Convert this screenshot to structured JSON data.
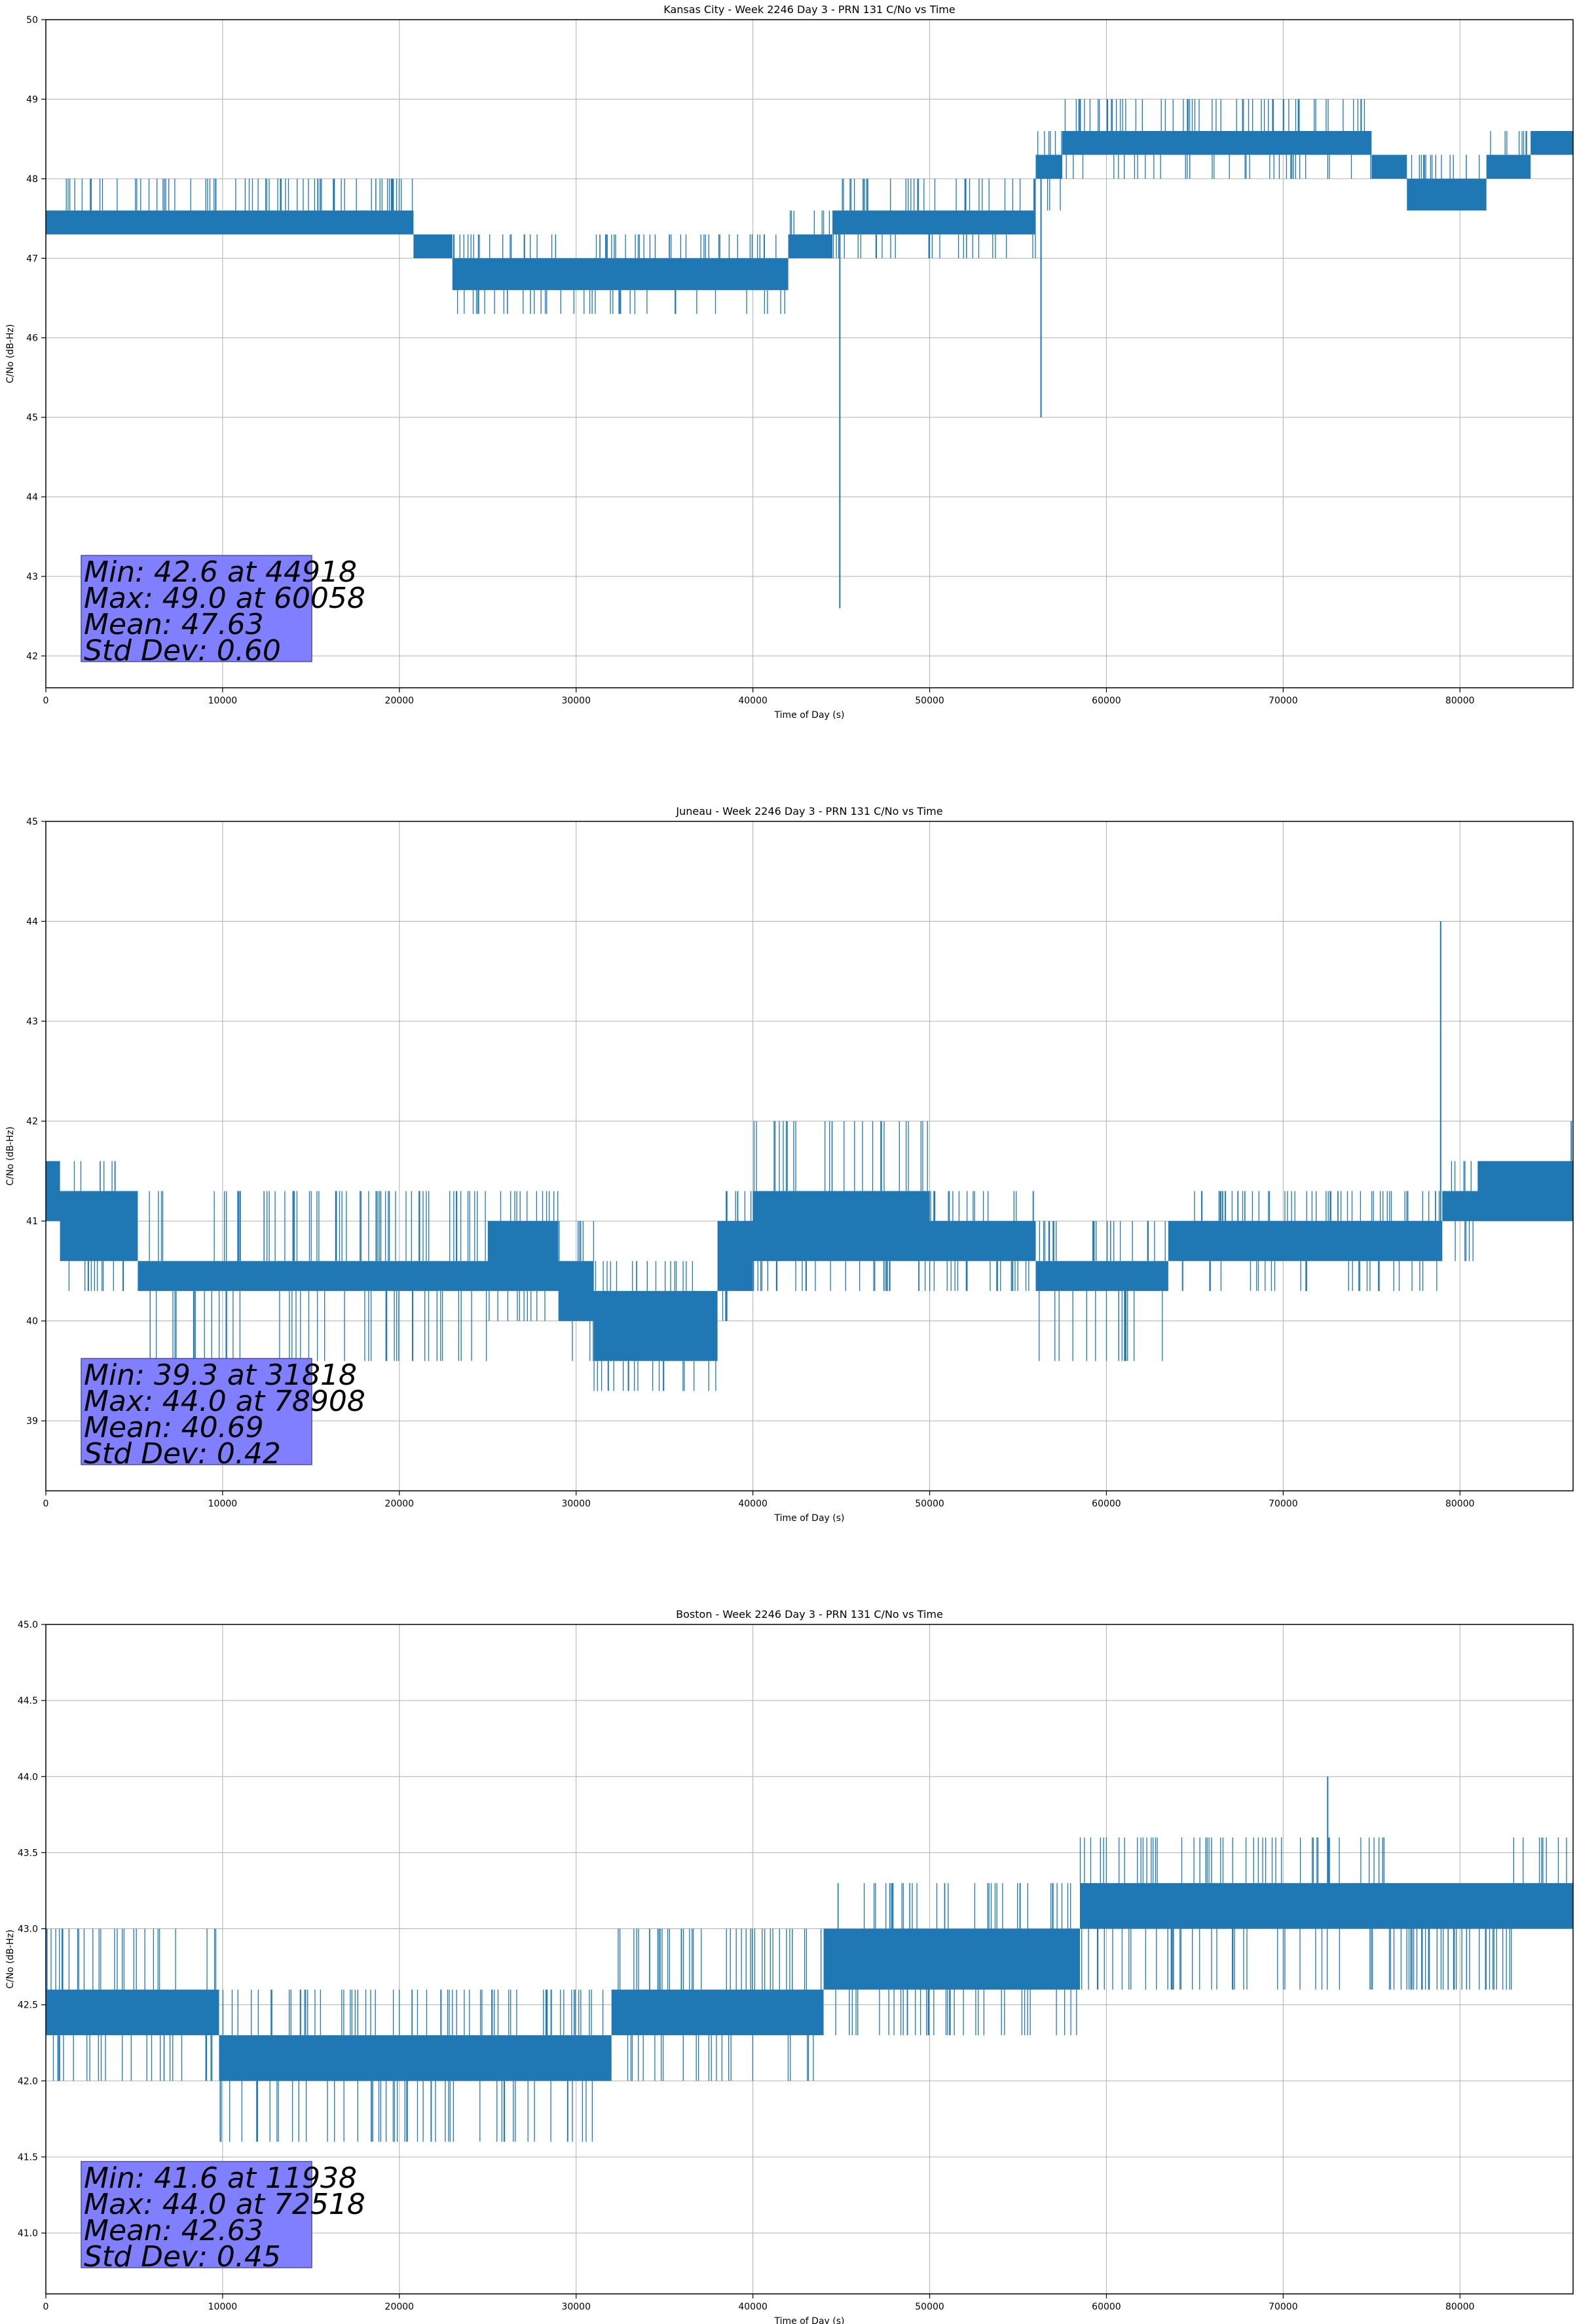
{
  "chart_data": [
    {
      "type": "line",
      "title": "Kansas City - Week 2246 Day 3 - PRN 131 C/No vs Time",
      "xlabel": "Time of Day (s)",
      "ylabel": "C/No (dB-Hz)",
      "xlim": [
        0,
        86400
      ],
      "ylim": [
        41.6,
        50
      ],
      "xticks": [
        0,
        10000,
        20000,
        30000,
        40000,
        50000,
        60000,
        70000,
        80000
      ],
      "yticks": [
        "42",
        "43",
        "44",
        "45",
        "46",
        "47",
        "48",
        "49",
        "50"
      ],
      "grid": true,
      "color": "#1f77b4",
      "stats": [
        "Min: 42.6 at 44918",
        "Max: 49.0 at 60058",
        "Mean: 47.63",
        "Std Dev: 0.60"
      ],
      "segments": [
        {
          "x": [
            0,
            20800
          ],
          "base": 47.3,
          "top": 47.6,
          "hi": 48.0,
          "lo": 47.3
        },
        {
          "x": [
            20800,
            23000
          ],
          "base": 47.0,
          "top": 47.3,
          "hi": 47.3,
          "lo": 47.0
        },
        {
          "x": [
            23000,
            42000
          ],
          "base": 46.6,
          "top": 47.0,
          "hi": 47.3,
          "lo": 46.3
        },
        {
          "x": [
            42000,
            44500
          ],
          "base": 47.0,
          "top": 47.3,
          "hi": 47.6,
          "lo": 47.0
        },
        {
          "x": [
            44500,
            56000
          ],
          "base": 47.3,
          "top": 47.6,
          "hi": 48.0,
          "lo": 47.0
        },
        {
          "x": [
            56000,
            57500
          ],
          "base": 48.0,
          "top": 48.3,
          "hi": 48.6,
          "lo": 47.6
        },
        {
          "x": [
            57500,
            75000
          ],
          "base": 48.3,
          "top": 48.6,
          "hi": 49.0,
          "lo": 48.0
        },
        {
          "x": [
            75000,
            77000
          ],
          "base": 48.0,
          "top": 48.3,
          "hi": 48.3,
          "lo": 48.0
        },
        {
          "x": [
            77000,
            81500
          ],
          "base": 47.6,
          "top": 48.0,
          "hi": 48.3,
          "lo": 47.6
        },
        {
          "x": [
            81500,
            84000
          ],
          "base": 48.0,
          "top": 48.3,
          "hi": 48.6,
          "lo": 48.0
        },
        {
          "x": [
            84000,
            86400
          ],
          "base": 48.3,
          "top": 48.6,
          "hi": 48.6,
          "lo": 48.3
        }
      ],
      "spikes": [
        {
          "x": 44918,
          "y": 42.6
        },
        {
          "x": 56300,
          "y": 45.0
        },
        {
          "x": 60058,
          "y": 49.0
        }
      ]
    },
    {
      "type": "line",
      "title": "Juneau - Week 2246 Day 3 - PRN 131 C/No vs Time",
      "xlabel": "Time of Day (s)",
      "ylabel": "C/No (dB-Hz)",
      "xlim": [
        0,
        86400
      ],
      "ylim": [
        38.3,
        45
      ],
      "xticks": [
        0,
        10000,
        20000,
        30000,
        40000,
        50000,
        60000,
        70000,
        80000
      ],
      "yticks": [
        "39",
        "40",
        "41",
        "42",
        "43",
        "44",
        "45"
      ],
      "grid": true,
      "color": "#1f77b4",
      "stats": [
        "Min: 39.3 at 31818",
        "Max: 44.0 at 78908",
        "Mean: 40.69",
        "Std Dev: 0.42"
      ],
      "segments": [
        {
          "x": [
            0,
            800
          ],
          "base": 41.0,
          "top": 41.6,
          "hi": 41.6,
          "lo": 41.0
        },
        {
          "x": [
            800,
            5200
          ],
          "base": 40.6,
          "top": 41.3,
          "hi": 41.6,
          "lo": 40.3
        },
        {
          "x": [
            5200,
            25000
          ],
          "base": 40.3,
          "top": 40.6,
          "hi": 41.3,
          "lo": 39.6
        },
        {
          "x": [
            25000,
            29000
          ],
          "base": 40.3,
          "top": 41.0,
          "hi": 41.3,
          "lo": 40.0
        },
        {
          "x": [
            29000,
            31000
          ],
          "base": 40.0,
          "top": 40.6,
          "hi": 41.0,
          "lo": 39.6
        },
        {
          "x": [
            31000,
            38000
          ],
          "base": 39.6,
          "top": 40.3,
          "hi": 40.6,
          "lo": 39.3
        },
        {
          "x": [
            38000,
            40000
          ],
          "base": 40.3,
          "top": 41.0,
          "hi": 41.3,
          "lo": 40.0
        },
        {
          "x": [
            40000,
            50000
          ],
          "base": 40.6,
          "top": 41.3,
          "hi": 42.0,
          "lo": 40.3
        },
        {
          "x": [
            50000,
            56000
          ],
          "base": 40.6,
          "top": 41.0,
          "hi": 41.3,
          "lo": 40.3
        },
        {
          "x": [
            56000,
            63500
          ],
          "base": 40.3,
          "top": 40.6,
          "hi": 41.0,
          "lo": 39.6
        },
        {
          "x": [
            63500,
            79000
          ],
          "base": 40.6,
          "top": 41.0,
          "hi": 41.3,
          "lo": 40.3
        },
        {
          "x": [
            79000,
            81000
          ],
          "base": 41.0,
          "top": 41.3,
          "hi": 41.6,
          "lo": 40.6
        },
        {
          "x": [
            81000,
            86400
          ],
          "base": 41.0,
          "top": 41.6,
          "hi": 41.6,
          "lo": 41.0
        }
      ],
      "spikes": [
        {
          "x": 31818,
          "y": 39.3
        },
        {
          "x": 78908,
          "y": 44.0
        },
        {
          "x": 86300,
          "y": 42.0
        }
      ]
    },
    {
      "type": "line",
      "title": "Boston - Week 2246 Day 3 - PRN 131 C/No vs Time",
      "xlabel": "Time of Day (s)",
      "ylabel": "C/No (dB-Hz)",
      "xlim": [
        0,
        86400
      ],
      "ylim": [
        40.6,
        45
      ],
      "xticks": [
        0,
        10000,
        20000,
        30000,
        40000,
        50000,
        60000,
        70000,
        80000
      ],
      "yticks": [
        "41.0",
        "41.5",
        "42.0",
        "42.5",
        "43.0",
        "43.5",
        "44.0",
        "44.5",
        "45.0"
      ],
      "grid": true,
      "color": "#1f77b4",
      "stats": [
        "Min: 41.6 at 11938",
        "Max: 44.0 at 72518",
        "Mean: 42.63",
        "Std Dev: 0.45"
      ],
      "segments": [
        {
          "x": [
            0,
            9800
          ],
          "base": 42.3,
          "top": 42.6,
          "hi": 43.0,
          "lo": 42.0
        },
        {
          "x": [
            9800,
            32000
          ],
          "base": 42.0,
          "top": 42.3,
          "hi": 42.6,
          "lo": 41.6
        },
        {
          "x": [
            32000,
            44000
          ],
          "base": 42.3,
          "top": 42.6,
          "hi": 43.0,
          "lo": 42.0
        },
        {
          "x": [
            44000,
            58500
          ],
          "base": 42.6,
          "top": 43.0,
          "hi": 43.3,
          "lo": 42.3
        },
        {
          "x": [
            58500,
            76000
          ],
          "base": 43.0,
          "top": 43.3,
          "hi": 43.6,
          "lo": 42.6
        },
        {
          "x": [
            76000,
            83000
          ],
          "base": 43.0,
          "top": 43.3,
          "hi": 43.3,
          "lo": 42.6
        },
        {
          "x": [
            83000,
            86400
          ],
          "base": 43.0,
          "top": 43.3,
          "hi": 43.6,
          "lo": 43.0
        }
      ],
      "spikes": [
        {
          "x": 11938,
          "y": 41.6
        },
        {
          "x": 72518,
          "y": 44.0
        }
      ]
    }
  ]
}
